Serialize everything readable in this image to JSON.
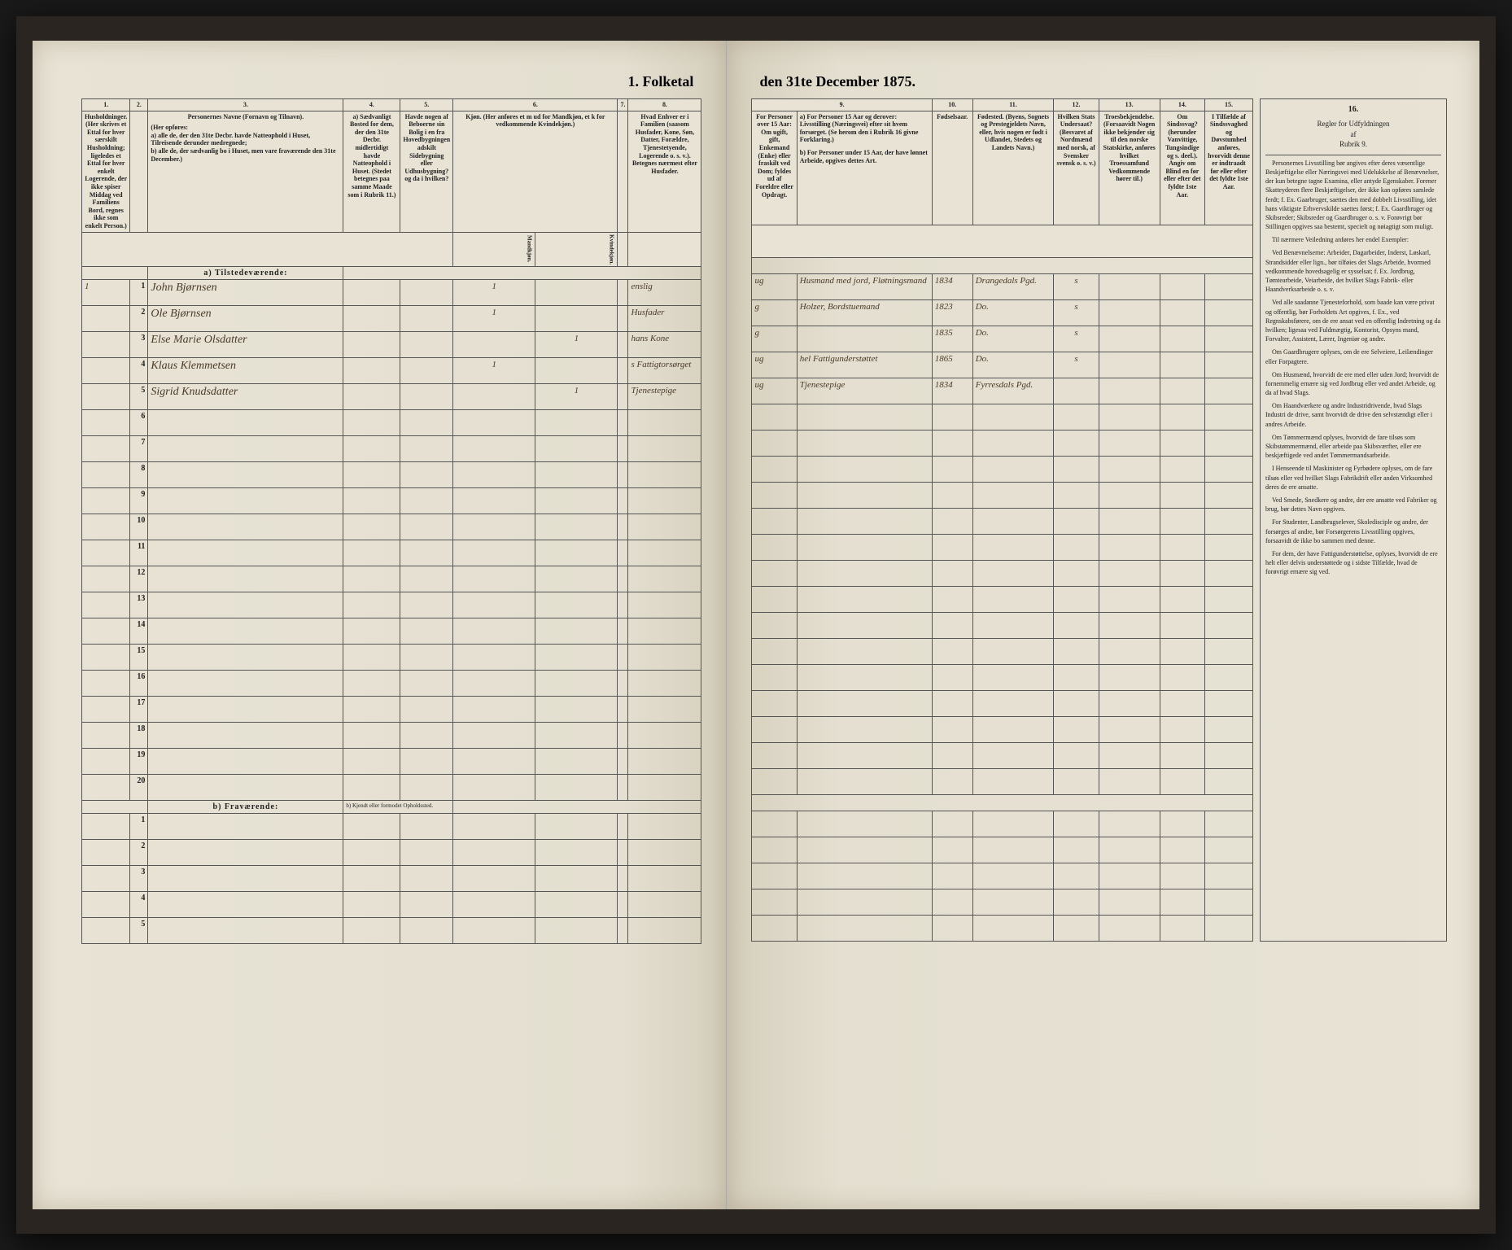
{
  "document": {
    "title_left": "1. Folketal",
    "title_right": "den 31te December 1875.",
    "section_a": "a) Tilstedeværende:",
    "section_b": "b) Fraværende:",
    "section_b_right": "b) Kjendt eller formodet Opholdssted."
  },
  "columns_left": {
    "c1": "1.",
    "c2": "2.",
    "c3": "3.",
    "c4": "4.",
    "c5": "5.",
    "c6": "6.",
    "c7": "7.",
    "c8": "8.",
    "h1": "Husholdninger. (Her skrives et Ettal for hver særskilt Husholdning; ligeledes et Ettal for hver enkelt Logerende, der ikke spiser Middag ved Familiens Bord, regnes ikke som enkelt Person.)",
    "h3_title": "Personernes Navne (Fornavn og Tilnavn).",
    "h3_sub": "(Her opføres:\na) alle de, der den 31te Decbr. havde Natteophold i Huset, Tilreisende derunder medregnede;\nb) alle de, der sædvanlig bo i Huset, men vare fraværende den 31te December.)",
    "h4": "a) Sædvanligt Bosted for dem, der den 31te Decbr. midlertidigt havde Natteophold i Huset. (Stedet betegnes paa samme Maade som i Rubrik 11.)",
    "h5": "Havde nogen af Beboerne sin Bolig i en fra Hovedbygningen adskilt Sidebygning eller Udhusbygning? og da i hvilken?",
    "h6": "Kjøn. (Her anføres et m ud for Mandkjøn, et k for vedkommende Kvindekjøn.)",
    "h6a": "Mandkjøn.",
    "h6b": "Kvindekjøn.",
    "h7": "",
    "h8": "Hvad Enhver er i Familien (saasom Husfader, Kone, Søn, Datter, Forældre, Tjenestetyende, Logerende o. s. v.). Betegnes nærmest efter Husfader."
  },
  "columns_right": {
    "c9": "9.",
    "c10": "10.",
    "c11": "11.",
    "c12": "12.",
    "c13": "13.",
    "c14": "14.",
    "c15": "15.",
    "c16": "16.",
    "h9_title": "For Personer over 15 Aar: Om ugift, gift, Enkemand (Enke) eller fraskilt ved Dom; fyldes ud af Foreldre eller Opdragt.",
    "h9_a": "a) For Personer 15 Aar og derover: Livsstilling (Næringsvei) efter sit hvem forsørget. (Se herom den i Rubrik 16 givne Forklaring.)",
    "h9_b": "b) For Personer under 15 Aar, der have lønnet Arbeide, opgives dettes Art.",
    "h10": "Fødselsaar.",
    "h11": "Fødested. (Byens, Sognets og Prestegjeldets Navn, eller, hvis nogen er født i Udlandet, Stedets og Landets Navn.)",
    "h12": "Hvilken Stats Undersaat? (Besvaret af Nordmænd med norsk, af Svensker svensk o. s. v.)",
    "h13": "Troesbekjendelse. (Forsaavidt Nogen ikke bekjender sig til den norske Statskirke, anføres hvilket Troessamfund Vedkommende hører til.)",
    "h14": "Om Sindssvag? (herunder Vanvittige, Tungsindige og s. deel.). Angiv om Blind en før eller efter det fyldte 1ste Aar.",
    "h15": "I Tilfælde af Sindssvaghed og Døvstumhed anføres, hvorvidt denne er indtraadt før eller efter det fyldte 1ste Aar.",
    "h16_title": "Regler for Udfyldningen af Rubrik 9."
  },
  "rows": [
    {
      "n": "1",
      "hh": "1",
      "name": "John Bjørnsen",
      "m": "1",
      "k": "",
      "fam": "enslig",
      "stat": "ug",
      "occ": "Husmand med jord, Fløtningsmand",
      "year": "1834",
      "place": "Drangedals Pgd.",
      "sub": "s"
    },
    {
      "n": "2",
      "hh": "",
      "name": "Ole Bjørnsen",
      "m": "1",
      "k": "",
      "fam": "Husfader",
      "stat": "g",
      "occ": "Holzer, Bordstuemand",
      "year": "1823",
      "place": "Do.",
      "sub": "s"
    },
    {
      "n": "3",
      "hh": "",
      "name": "Else Marie Olsdatter",
      "m": "",
      "k": "1",
      "fam": "hans Kone",
      "stat": "g",
      "occ": "",
      "year": "1835",
      "place": "Do.",
      "sub": "s"
    },
    {
      "n": "4",
      "hh": "",
      "name": "Klaus Klemmetsen",
      "m": "1",
      "k": "",
      "fam": "s Fattigtorsørget",
      "stat": "ug",
      "occ": "hel Fattigunderstøttet",
      "year": "1865",
      "place": "Do.",
      "sub": "s"
    },
    {
      "n": "5",
      "hh": "",
      "name": "Sigrid Knudsdatter",
      "m": "",
      "k": "1",
      "fam": "Tjenestepige",
      "stat": "ug",
      "occ": "Tjenestepige",
      "year": "1834",
      "place": "Fyrresdals Pgd.",
      "sub": ""
    }
  ],
  "empty_rows_a": [
    "6",
    "7",
    "8",
    "9",
    "10",
    "11",
    "12",
    "13",
    "14",
    "15",
    "16",
    "17",
    "18",
    "19",
    "20"
  ],
  "empty_rows_b": [
    "1",
    "2",
    "3",
    "4",
    "5"
  ],
  "instructions": {
    "title": "Regler for Udfyldningen\naf\nRubrik 9.",
    "p1": "Personernes Livsstilling bør angives efter deres væsentlige Beskjæftigelse eller Næringsvei med Udelukkelse af Benævnelser, der kun betegne tagne Examina, eller antyde Egenskaber. Forener Skatteyderen flere Beskjæftigelser, der ikke kan opføres samlede ferdt; f. Ex. Gaarbruger, saettes den med dobbelt Livsstilling, idet hans viktigste Erhvervskilde saettes først; f. Ex. Gaardbruger og Skibsreder; Skibsreder og Gaardbruger o. s. v. Forøvrigt bør Stillingen opgives saa bestemt, specielt og nøiagtigt som muligt.",
    "p2": "Til nærmere Veiledning anføres her endel Exempler:",
    "p3": "Ved Benævnelserne: Arbeider, Dagarbeider, Inderst, Løskarl, Strandsidder eller lign., bør tilføies det Slags Arbeide, hvormed vedkommende hovedsagelig er sysselsat; f. Ex. Jordbrug, Tømtearbeide, Veiarbeide, det hvilket Slags Fabrik- eller Haandverksarbeide o. s. v.",
    "p4": "Ved alle saadanne Tjenesteforhold, som baade kan være privat og offentlig, bør Forholdets Art opgives, f. Ex., ved Regnskabsførere, om de ere ansat ved en offentlig Indretning og da hvilken; ligesaa ved Fuldmægtig, Kontorist, Opsyns mand, Forvalter, Assistent, Lærer, Ingeniør og andre.",
    "p5": "Om Gaardbrugere oplyses, om de ere Selveiere, Leilændinger eller Forpagtere.",
    "p6": "Om Husmænd, hvorvidt de ere med eller uden Jord; hvorvidt de fornemmelig ernære sig ved Jordbrug eller ved andet Arbeide, og da af hvad Slags.",
    "p7": "Om Haandværkere og andre Industridrivende, hvad Slags Industri de drive, samt hvorvidt de drive den selvstændigt eller i andres Arbeide.",
    "p8": "Om Tømmermænd oplyses, hvorvidt de fare tilsøs som Skibstømmermænd, eller arbeide paa Skibsværfter, eller ere beskjæftigede ved andet Tømmermandsarbeide.",
    "p9": "I Henseende til Maskinister og Fyrbødere oplyses, om de fare tilsøs eller ved hvilket Slags Fabrikdrift eller anden Virksomhed deres de ere ansatte.",
    "p10": "Ved Smede, Snedkere og andre, der ere ansatte ved Fabriker og brug, bør dettes Navn opgives.",
    "p11": "For Studenter, Landbrugselever, Skoledisciple og andre, der forsørges af andre, bør Forsørgerens Livsstilling opgives, forsaavidt de ikke bo sammen med denne.",
    "p12": "For dem, der have Fattigunderstøttelse, oplyses, hvorvidt de ere helt eller delvis understøttede og i sidste Tilfælde, hvad de forøvrigt ernære sig ved."
  },
  "style": {
    "bg": "#1a1a1a",
    "paper": "#e8e3d5",
    "ink": "#222222",
    "handwriting": "#4a3a28",
    "border": "#555555"
  }
}
